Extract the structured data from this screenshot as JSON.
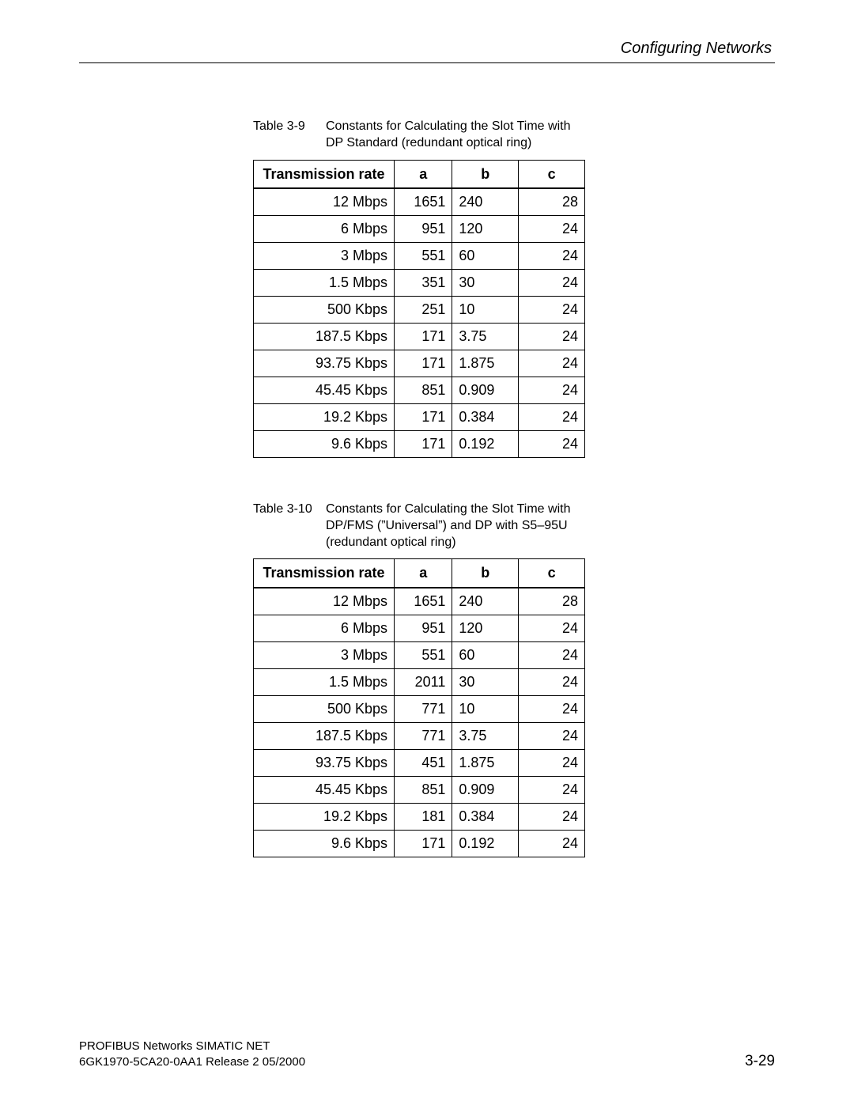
{
  "header": {
    "section_title": "Configuring Networks"
  },
  "tables": [
    {
      "label": "Table 3-9",
      "caption": "Constants for Calculating the Slot Time with DP Standard (redundant optical ring)",
      "columns": {
        "rate": "Transmission rate",
        "a": "a",
        "b": "b",
        "c": "c"
      },
      "rows": [
        {
          "rate": "12 Mbps",
          "a": "1651",
          "b": "240",
          "c": "28"
        },
        {
          "rate": "6 Mbps",
          "a": "951",
          "b": "120",
          "c": "24"
        },
        {
          "rate": "3 Mbps",
          "a": "551",
          "b": "60",
          "c": "24"
        },
        {
          "rate": "1.5 Mbps",
          "a": "351",
          "b": "30",
          "c": "24"
        },
        {
          "rate": "500 Kbps",
          "a": "251",
          "b": "10",
          "c": "24"
        },
        {
          "rate": "187.5 Kbps",
          "a": "171",
          "b": "3.75",
          "c": "24"
        },
        {
          "rate": "93.75 Kbps",
          "a": "171",
          "b": "1.875",
          "c": "24"
        },
        {
          "rate": "45.45 Kbps",
          "a": "851",
          "b": "0.909",
          "c": "24"
        },
        {
          "rate": "19.2 Kbps",
          "a": "171",
          "b": "0.384",
          "c": "24"
        },
        {
          "rate": "9.6 Kbps",
          "a": "171",
          "b": "0.192",
          "c": "24"
        }
      ]
    },
    {
      "label": "Table 3-10",
      "caption": "Constants for Calculating the Slot Time with DP/FMS (”Universal”) and DP with S5–95U (redundant optical ring)",
      "columns": {
        "rate": "Transmission rate",
        "a": "a",
        "b": "b",
        "c": "c"
      },
      "rows": [
        {
          "rate": "12 Mbps",
          "a": "1651",
          "b": "240",
          "c": "28"
        },
        {
          "rate": "6 Mbps",
          "a": "951",
          "b": "120",
          "c": "24"
        },
        {
          "rate": "3 Mbps",
          "a": "551",
          "b": "60",
          "c": "24"
        },
        {
          "rate": "1.5 Mbps",
          "a": "2011",
          "b": "30",
          "c": "24"
        },
        {
          "rate": "500 Kbps",
          "a": "771",
          "b": "10",
          "c": "24"
        },
        {
          "rate": "187.5 Kbps",
          "a": "771",
          "b": "3.75",
          "c": "24"
        },
        {
          "rate": "93.75 Kbps",
          "a": "451",
          "b": "1.875",
          "c": "24"
        },
        {
          "rate": "45.45 Kbps",
          "a": "851",
          "b": "0.909",
          "c": "24"
        },
        {
          "rate": "19.2 Kbps",
          "a": "181",
          "b": "0.384",
          "c": "24"
        },
        {
          "rate": "9.6 Kbps",
          "a": "171",
          "b": "0.192",
          "c": "24"
        }
      ]
    }
  ],
  "footer": {
    "line1": "PROFIBUS Networks SIMATIC NET",
    "line2": "6GK1970-5CA20-0AA1 Release 2 05/2000",
    "page_no": "3-29"
  }
}
